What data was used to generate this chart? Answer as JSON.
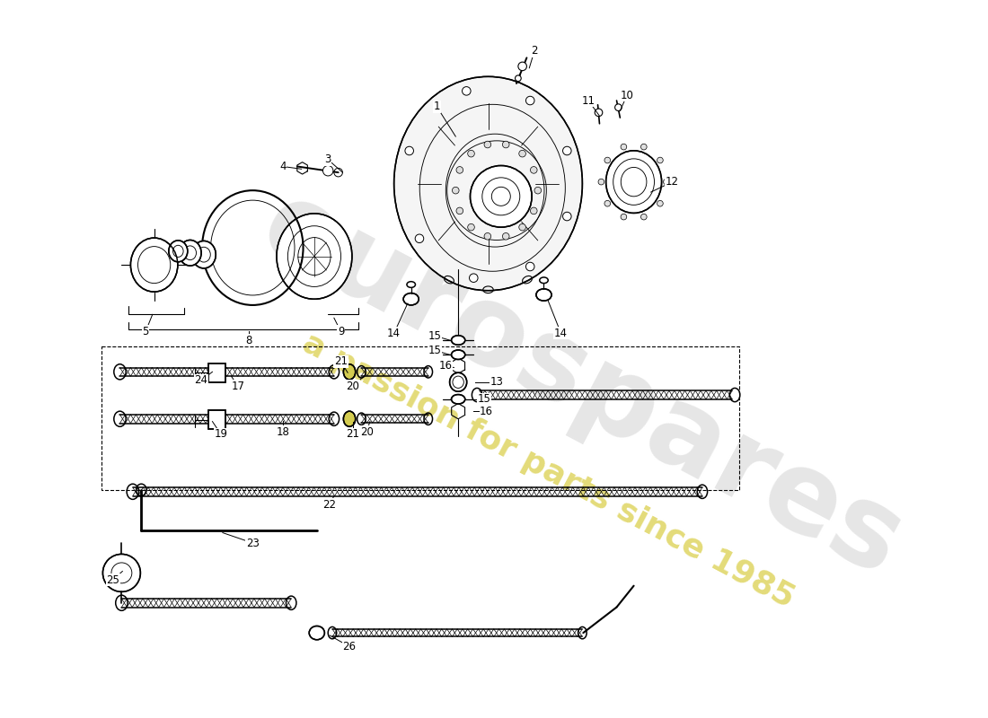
{
  "bg_color": "#ffffff",
  "wm_color": "#c8c8c8",
  "wm_yellow": "#d8cc40",
  "lw": 1.1,
  "lt": 0.65,
  "fs": 8.0
}
